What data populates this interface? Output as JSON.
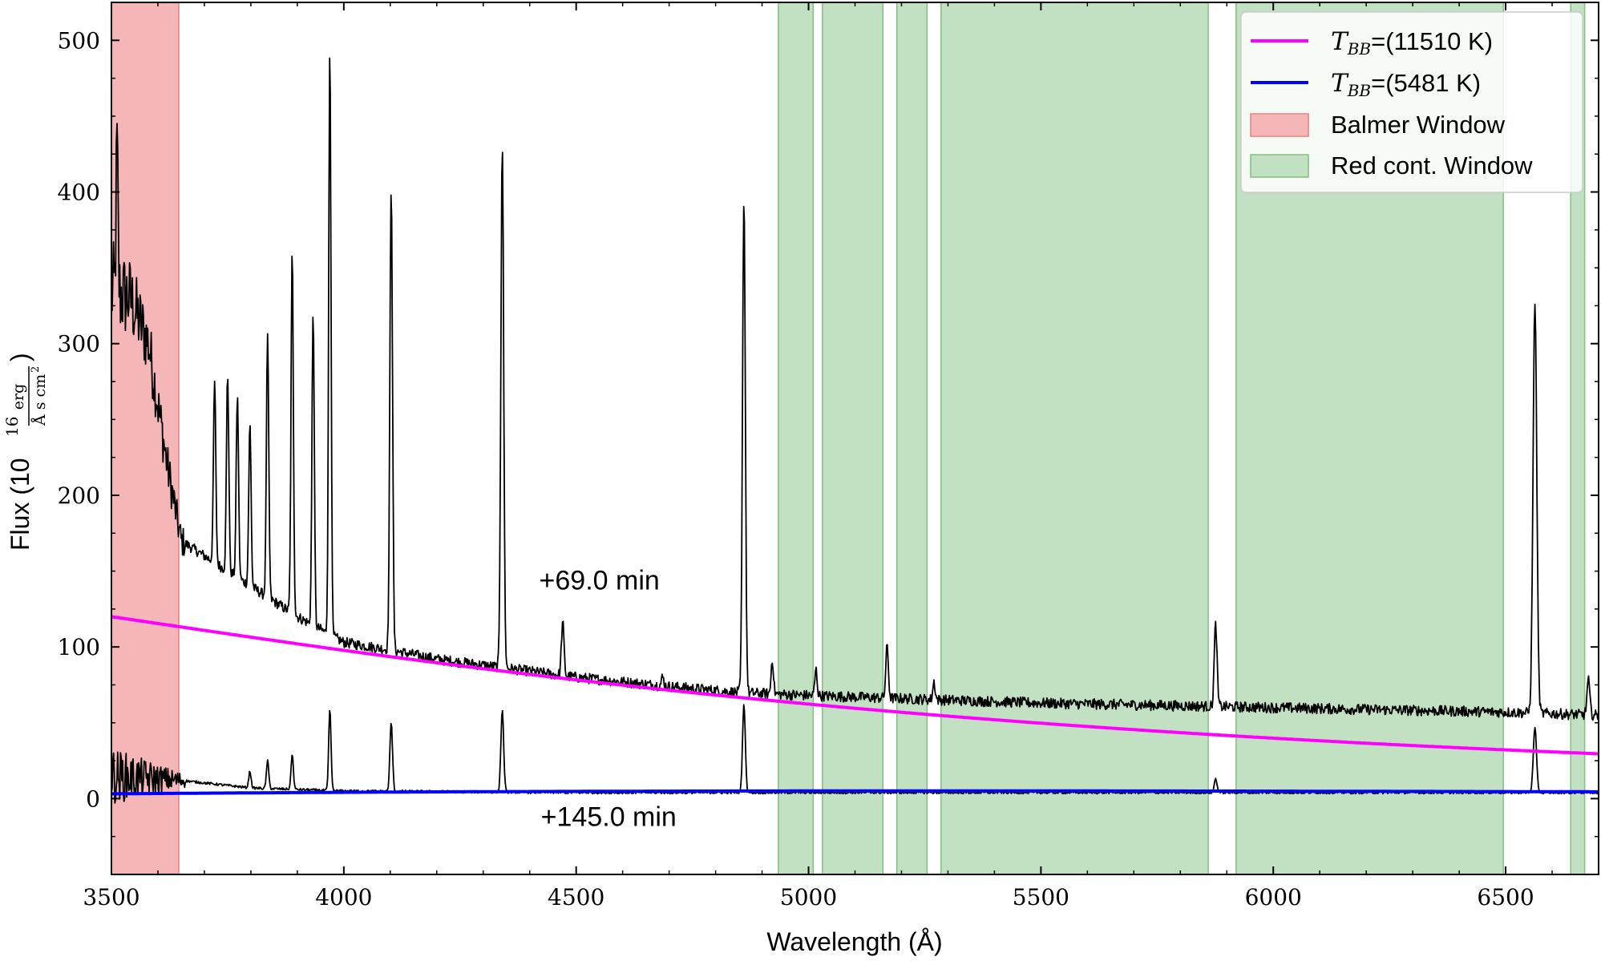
{
  "chart_data": {
    "type": "line",
    "xlabel": "Wavelength (Å)",
    "ylabel": "Flux (10",
    "ylabel_exp": "16",
    "ylabel_num": "erg",
    "ylabel_den": "Å s cm",
    "ylabel_den_exp": "2",
    "ylabel_close": ")",
    "xlim": [
      3500,
      6700
    ],
    "ylim": [
      -50,
      525
    ],
    "xticks": [
      3500,
      4000,
      4500,
      5000,
      5500,
      6000,
      6500
    ],
    "yticks": [
      0,
      100,
      200,
      300,
      400,
      500
    ],
    "grid": false,
    "legend_position": "top-right",
    "legend": [
      {
        "kind": "line",
        "label_math": "T",
        "label_sub": "BB",
        "label_rest": "=(11510 K)",
        "color": "#ff00ff"
      },
      {
        "kind": "line",
        "label_math": "T",
        "label_sub": "BB",
        "label_rest": "=(5481 K)",
        "color": "#0000ff"
      },
      {
        "kind": "patch",
        "label": "Balmer Window",
        "color": "#f4b6b6",
        "edge": "#f08080"
      },
      {
        "kind": "patch",
        "label": "Red cont. Window",
        "color": "#c2e0c2",
        "edge": "#80c080"
      }
    ],
    "balmer_window": [
      3500,
      3645
    ],
    "red_windows": [
      [
        4935,
        5010
      ],
      [
        5030,
        5160
      ],
      [
        5190,
        5255
      ],
      [
        5285,
        5860
      ],
      [
        5920,
        6495
      ],
      [
        6640,
        6670
      ]
    ],
    "annotations": [
      {
        "text": "+69.0 min",
        "x": 4550,
        "y": 138
      },
      {
        "text": "+145.0 min",
        "x": 4570,
        "y": -18
      }
    ],
    "series": [
      {
        "name": "+69.0 min spectrum",
        "color": "#000000",
        "continuum": [
          [
            3500,
            335
          ],
          [
            3540,
            330
          ],
          [
            3580,
            300
          ],
          [
            3620,
            220
          ],
          [
            3650,
            170
          ],
          [
            3700,
            160
          ],
          [
            3800,
            140
          ],
          [
            3900,
            120
          ],
          [
            4000,
            103
          ],
          [
            4100,
            98
          ],
          [
            4200,
            92
          ],
          [
            4300,
            88
          ],
          [
            4400,
            84
          ],
          [
            4500,
            80
          ],
          [
            4700,
            74
          ],
          [
            4850,
            70
          ],
          [
            5000,
            68
          ],
          [
            5200,
            66
          ],
          [
            5500,
            63
          ],
          [
            6000,
            60
          ],
          [
            6500,
            57
          ],
          [
            6700,
            55
          ]
        ],
        "lines": [
          {
            "wl": 3512,
            "peak": 432,
            "sigma": 2.0
          },
          {
            "wl": 3722,
            "peak": 275,
            "sigma": 2.5
          },
          {
            "wl": 3750,
            "peak": 280,
            "sigma": 2.5
          },
          {
            "wl": 3771,
            "peak": 265,
            "sigma": 2.5
          },
          {
            "wl": 3798,
            "peak": 247,
            "sigma": 2.5
          },
          {
            "wl": 3836,
            "peak": 305,
            "sigma": 2.5
          },
          {
            "wl": 3889,
            "peak": 360,
            "sigma": 2.5
          },
          {
            "wl": 3934,
            "peak": 322,
            "sigma": 2.5
          },
          {
            "wl": 3970,
            "peak": 496,
            "sigma": 2.5
          },
          {
            "wl": 4102,
            "peak": 405,
            "sigma": 2.8
          },
          {
            "wl": 4341,
            "peak": 432,
            "sigma": 3.0
          },
          {
            "wl": 4471,
            "peak": 116,
            "sigma": 2.8
          },
          {
            "wl": 4686,
            "peak": 80,
            "sigma": 2.5
          },
          {
            "wl": 4861,
            "peak": 398,
            "sigma": 3.0
          },
          {
            "wl": 4922,
            "peak": 92,
            "sigma": 2.5
          },
          {
            "wl": 5016,
            "peak": 85,
            "sigma": 2.5
          },
          {
            "wl": 5169,
            "peak": 100,
            "sigma": 2.8
          },
          {
            "wl": 5270,
            "peak": 77,
            "sigma": 2.5
          },
          {
            "wl": 5876,
            "peak": 115,
            "sigma": 3.0
          },
          {
            "wl": 6563,
            "peak": 327,
            "sigma": 4.0
          },
          {
            "wl": 6678,
            "peak": 78,
            "sigma": 3.0
          }
        ],
        "noise": 3.5,
        "noise_blue": 30
      },
      {
        "name": "+145.0 min spectrum",
        "color": "#000000",
        "continuum": [
          [
            3500,
            15
          ],
          [
            3650,
            12
          ],
          [
            3800,
            7
          ],
          [
            4000,
            5
          ],
          [
            4500,
            4
          ],
          [
            6700,
            4
          ]
        ],
        "lines": [
          {
            "wl": 3798,
            "peak": 18,
            "sigma": 2.5
          },
          {
            "wl": 3836,
            "peak": 25,
            "sigma": 2.5
          },
          {
            "wl": 3889,
            "peak": 29,
            "sigma": 2.5
          },
          {
            "wl": 3970,
            "peak": 59,
            "sigma": 2.5
          },
          {
            "wl": 4102,
            "peak": 50,
            "sigma": 2.8
          },
          {
            "wl": 4341,
            "peak": 58,
            "sigma": 3.0
          },
          {
            "wl": 4861,
            "peak": 62,
            "sigma": 3.0
          },
          {
            "wl": 5876,
            "peak": 13,
            "sigma": 3.0
          },
          {
            "wl": 6563,
            "peak": 46,
            "sigma": 3.5
          }
        ],
        "noise": 0.8,
        "noise_blue": 18
      },
      {
        "name": "T_BB=(11510 K)",
        "color": "#ff00ff",
        "kind": "blackbody",
        "temperature": 11510,
        "anchor": [
          3500,
          120
        ]
      },
      {
        "name": "T_BB=(5481 K)",
        "color": "#0000ff",
        "kind": "blackbody",
        "temperature": 5481,
        "anchor": [
          6700,
          4.5
        ]
      }
    ]
  }
}
